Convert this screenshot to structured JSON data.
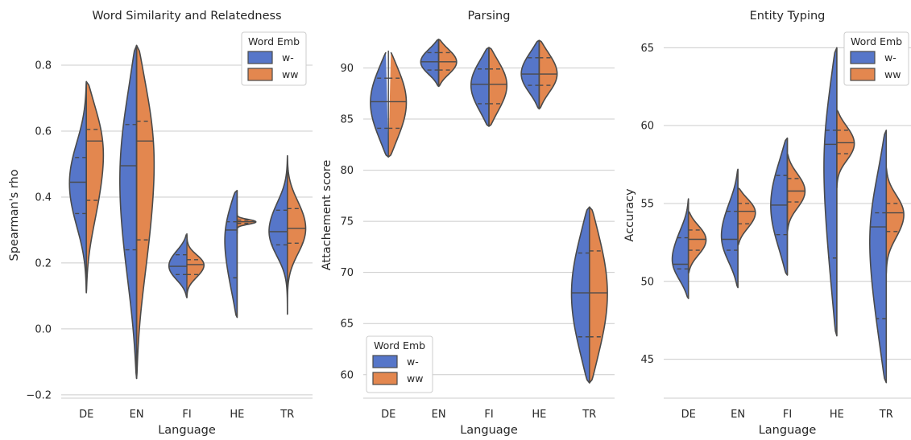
{
  "chart_data": [
    {
      "type": "violin",
      "title": "Word Similarity and Relatedness",
      "xlabel": "Language",
      "ylabel": "Spearman's rho",
      "categories": [
        "DE",
        "EN",
        "FI",
        "HE",
        "TR"
      ],
      "ylim": [
        -0.21,
        0.9
      ],
      "yticks": [
        -0.2,
        0.0,
        0.2,
        0.4,
        0.6,
        0.8
      ],
      "ytick_labels": [
        "−0.2",
        "0.0",
        "0.2",
        "0.4",
        "0.6",
        "0.8"
      ],
      "legend": {
        "title": "Word Emb",
        "position": "top-right"
      },
      "series": [
        {
          "name": "w-",
          "violins": [
            {
              "min": 0.11,
              "max": 0.75,
              "q1": 0.35,
              "median": 0.445,
              "q3": 0.52,
              "w": 0.25
            },
            {
              "min": -0.15,
              "max": 0.86,
              "q1": 0.24,
              "median": 0.495,
              "q3": 0.62,
              "w": 0.26
            },
            {
              "min": 0.095,
              "max": 0.29,
              "q1": 0.165,
              "median": 0.19,
              "q3": 0.225,
              "w": 0.3
            },
            {
              "min": 0.035,
              "max": 0.42,
              "q1": 0.155,
              "median": 0.3,
              "q3": 0.325,
              "w": 0.05
            },
            {
              "min": 0.045,
              "max": 0.525,
              "q1": 0.255,
              "median": 0.295,
              "q3": 0.36,
              "w": 0.32
            }
          ]
        },
        {
          "name": "ww",
          "violins": [
            {
              "min": 0.11,
              "max": 0.75,
              "q1": 0.39,
              "median": 0.57,
              "q3": 0.605,
              "w": 0.3
            },
            {
              "min": -0.15,
              "max": 0.86,
              "q1": 0.27,
              "median": 0.57,
              "q3": 0.63,
              "w": 0.32
            },
            {
              "min": 0.095,
              "max": 0.29,
              "q1": 0.165,
              "median": 0.195,
              "q3": 0.21,
              "w": 0.26
            },
            {
              "min": 0.29,
              "max": 0.35,
              "q1": 0.32,
              "median": 0.325,
              "q3": 0.33,
              "w": 0.35
            },
            {
              "min": 0.045,
              "max": 0.525,
              "q1": 0.26,
              "median": 0.305,
              "q3": 0.365,
              "w": 0.32
            }
          ]
        }
      ]
    },
    {
      "type": "violin",
      "title": "Parsing",
      "xlabel": "Language",
      "ylabel": "Attachement score",
      "categories": [
        "DE",
        "EN",
        "FI",
        "HE",
        "TR"
      ],
      "ylim": [
        57.7,
        93.5
      ],
      "yticks": [
        60,
        65,
        70,
        75,
        80,
        85,
        90
      ],
      "ytick_labels": [
        "60",
        "65",
        "70",
        "75",
        "80",
        "85",
        "90"
      ],
      "legend": {
        "title": "Word Emb",
        "position": "bottom-left"
      },
      "series": [
        {
          "name": "w-",
          "violins": [
            {
              "min": 81.3,
              "max": 91.7,
              "q1": 84.1,
              "median": 86.7,
              "q3": 89.0,
              "w": 0.3
            },
            {
              "min": 88.2,
              "max": 92.8,
              "q1": 89.8,
              "median": 90.6,
              "q3": 91.5,
              "w": 0.3
            },
            {
              "min": 84.3,
              "max": 92.0,
              "q1": 86.5,
              "median": 88.4,
              "q3": 89.9,
              "w": 0.3
            },
            {
              "min": 86.0,
              "max": 92.7,
              "q1": 88.3,
              "median": 89.4,
              "q3": 91.0,
              "w": 0.3
            },
            {
              "min": 59.2,
              "max": 76.4,
              "q1": 63.7,
              "median": 68.0,
              "q3": 71.9,
              "w": 0.3
            }
          ]
        },
        {
          "name": "ww",
          "violins": [
            {
              "min": 81.3,
              "max": 91.7,
              "q1": 84.1,
              "median": 86.7,
              "q3": 89.0,
              "w": 0.3
            },
            {
              "min": 88.2,
              "max": 92.8,
              "q1": 89.8,
              "median": 90.6,
              "q3": 91.5,
              "w": 0.3
            },
            {
              "min": 84.3,
              "max": 92.0,
              "q1": 86.5,
              "median": 88.4,
              "q3": 89.9,
              "w": 0.3
            },
            {
              "min": 86.0,
              "max": 92.7,
              "q1": 88.3,
              "median": 89.4,
              "q3": 91.0,
              "w": 0.3
            },
            {
              "min": 59.2,
              "max": 76.4,
              "q1": 63.7,
              "median": 68.0,
              "q3": 72.1,
              "w": 0.3
            }
          ]
        }
      ]
    },
    {
      "type": "violin",
      "title": "Entity Typing",
      "xlabel": "Language",
      "ylabel": "Accuracy",
      "categories": [
        "DE",
        "EN",
        "FI",
        "HE",
        "TR"
      ],
      "ylim": [
        42.5,
        66.0
      ],
      "yticks": [
        45,
        50,
        55,
        60,
        65
      ],
      "ytick_labels": [
        "45",
        "50",
        "55",
        "60",
        "65"
      ],
      "legend": {
        "title": "Word Emb",
        "position": "top-right"
      },
      "series": [
        {
          "name": "w-",
          "violins": [
            {
              "min": 48.9,
              "max": 55.3,
              "q1": 50.8,
              "median": 51.1,
              "q3": 52.8,
              "w": 0.25
            },
            {
              "min": 49.6,
              "max": 57.2,
              "q1": 52.0,
              "median": 52.7,
              "q3": 54.5,
              "w": 0.25
            },
            {
              "min": 50.4,
              "max": 59.2,
              "q1": 53.0,
              "median": 54.9,
              "q3": 56.8,
              "w": 0.25
            },
            {
              "min": 46.5,
              "max": 65.0,
              "q1": 51.5,
              "median": 58.8,
              "q3": 59.7,
              "w": 0.08
            },
            {
              "min": 43.5,
              "max": 59.7,
              "q1": 47.6,
              "median": 53.5,
              "q3": 54.4,
              "w": 0.25
            }
          ]
        },
        {
          "name": "ww",
          "violins": [
            {
              "min": 50.5,
              "max": 54.5,
              "q1": 52.0,
              "median": 52.7,
              "q3": 53.3,
              "w": 0.3
            },
            {
              "min": 52.3,
              "max": 56.0,
              "q1": 53.7,
              "median": 54.5,
              "q3": 55.0,
              "w": 0.3
            },
            {
              "min": 53.2,
              "max": 58.2,
              "q1": 55.1,
              "median": 55.8,
              "q3": 56.6,
              "w": 0.3
            },
            {
              "min": 56.0,
              "max": 61.0,
              "q1": 58.2,
              "median": 58.9,
              "q3": 59.7,
              "w": 0.3
            },
            {
              "min": 50.5,
              "max": 57.3,
              "q1": 53.2,
              "median": 54.4,
              "q3": 55.0,
              "w": 0.3
            }
          ]
        }
      ]
    }
  ],
  "colors": {
    "w-": "#5676c9",
    "ww": "#e3874f",
    "outline": "#4a4a4a",
    "grid": "#cccccc"
  }
}
